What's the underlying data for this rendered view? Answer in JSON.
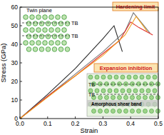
{
  "chart_data": {
    "type": "line",
    "x_label": "Strain",
    "y_label": "Stress (GPa)",
    "xlim": [
      0,
      0.5
    ],
    "ylim": [
      0,
      60
    ],
    "xticks": [
      {
        "value": 0,
        "label": "0.0"
      },
      0.1,
      0.2,
      0.3,
      0.4,
      0.5
    ],
    "yticks": [
      0,
      10,
      20,
      30,
      40,
      50,
      60
    ],
    "series": [
      {
        "color": "#2a2a2a",
        "x": [
          0,
          0.1,
          0.2,
          0.3,
          0.34,
          0.37
        ],
        "values": [
          0,
          13,
          27,
          43,
          50,
          36
        ]
      },
      {
        "color": "#7a7a7a",
        "x": [
          0,
          0.1,
          0.2,
          0.3,
          0.38,
          0.41,
          0.47
        ],
        "values": [
          0,
          12,
          24,
          36,
          47,
          57,
          46
        ]
      },
      {
        "color": "#e0302a",
        "x": [
          0,
          0.1,
          0.2,
          0.3,
          0.36,
          0.4,
          0.43,
          0.48
        ],
        "values": [
          0,
          12,
          23,
          35,
          42,
          52,
          49,
          45
        ]
      },
      {
        "color": "#f0a020",
        "x": [
          0,
          0.1,
          0.2,
          0.3,
          0.38,
          0.42,
          0.46
        ],
        "values": [
          0,
          11.5,
          23,
          34,
          45,
          55,
          47
        ]
      }
    ],
    "annotations": [
      {
        "text": "Twin plane"
      },
      {
        "text": "TB"
      },
      {
        "text": "TB"
      },
      {
        "text": "Hardening limit"
      },
      {
        "text": "Expansion inhibition"
      },
      {
        "text": "TB"
      },
      {
        "text": "TB"
      },
      {
        "text": "Amorphous shear band"
      }
    ]
  }
}
